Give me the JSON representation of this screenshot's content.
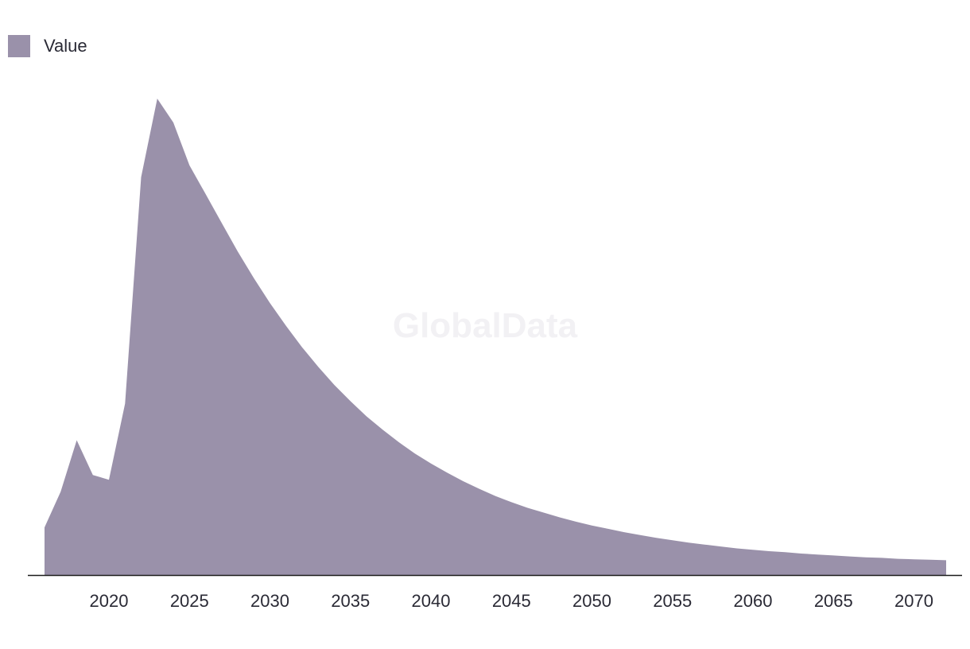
{
  "watermark": "GlobalData",
  "chart_data": {
    "type": "area",
    "legend": {
      "placement": "top-left",
      "entries": [
        {
          "label": "Value",
          "color": "#9a91aa"
        }
      ]
    },
    "grid": false,
    "axis_color": "#1b1b1b",
    "xlim": [
      2016,
      2072
    ],
    "ylim": [
      0,
      100
    ],
    "x_ticks": [
      2020,
      2025,
      2030,
      2035,
      2040,
      2045,
      2050,
      2055,
      2060,
      2065,
      2070
    ],
    "x_tick_labels": [
      "2020",
      "2025",
      "2030",
      "2035",
      "2040",
      "2045",
      "2050",
      "2055",
      "2060",
      "2065",
      "2070"
    ],
    "series": [
      {
        "name": "Value",
        "color": "#9a91aa",
        "x": [
          2016,
          2017,
          2018,
          2019,
          2020,
          2021,
          2022,
          2023,
          2024,
          2025,
          2026,
          2027,
          2028,
          2029,
          2030,
          2031,
          2032,
          2033,
          2034,
          2035,
          2036,
          2037,
          2038,
          2039,
          2040,
          2041,
          2042,
          2043,
          2044,
          2045,
          2046,
          2047,
          2048,
          2049,
          2050,
          2051,
          2052,
          2053,
          2054,
          2055,
          2056,
          2057,
          2058,
          2059,
          2060,
          2061,
          2062,
          2063,
          2064,
          2065,
          2066,
          2067,
          2068,
          2069,
          2070,
          2071,
          2072
        ],
        "values": [
          10.0,
          17.5,
          28.3,
          21.0,
          20.0,
          36.0,
          83.5,
          100.0,
          95.0,
          86.0,
          80.0,
          73.9,
          67.9,
          62.3,
          57.1,
          52.3,
          47.8,
          43.7,
          39.9,
          36.5,
          33.3,
          30.5,
          27.9,
          25.5,
          23.4,
          21.5,
          19.7,
          18.1,
          16.6,
          15.3,
          14.1,
          13.1,
          12.1,
          11.2,
          10.4,
          9.7,
          9.0,
          8.4,
          7.8,
          7.3,
          6.8,
          6.4,
          6.0,
          5.6,
          5.3,
          5.0,
          4.8,
          4.5,
          4.3,
          4.1,
          3.9,
          3.7,
          3.6,
          3.4,
          3.3,
          3.2,
          3.1
        ]
      }
    ]
  }
}
